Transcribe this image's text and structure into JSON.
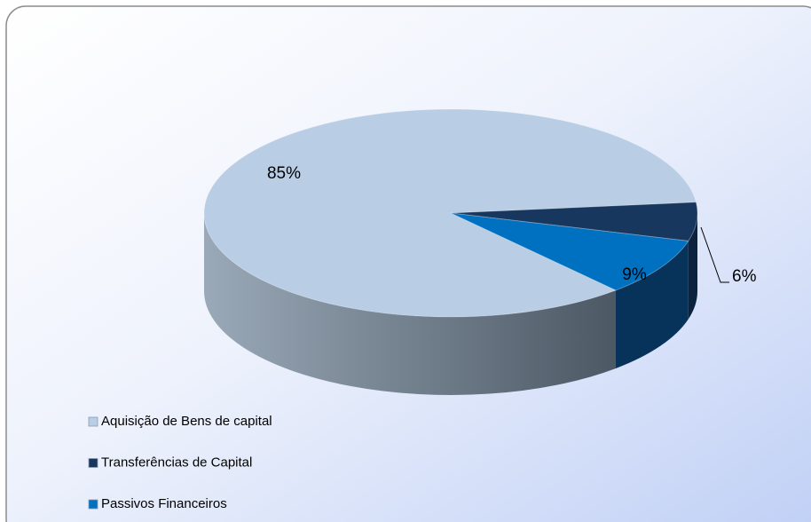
{
  "chart_data": {
    "type": "pie",
    "categories": [
      "Aquisição de Bens de capital",
      "Transferências de Capital",
      "Passivos Financeiros"
    ],
    "values": [
      85,
      6,
      9
    ],
    "value_labels": [
      "85%",
      "6%",
      "9%"
    ],
    "colors": [
      "#b9cde5",
      "#17375e",
      "#0070c0"
    ],
    "legend": "bottom-left"
  }
}
